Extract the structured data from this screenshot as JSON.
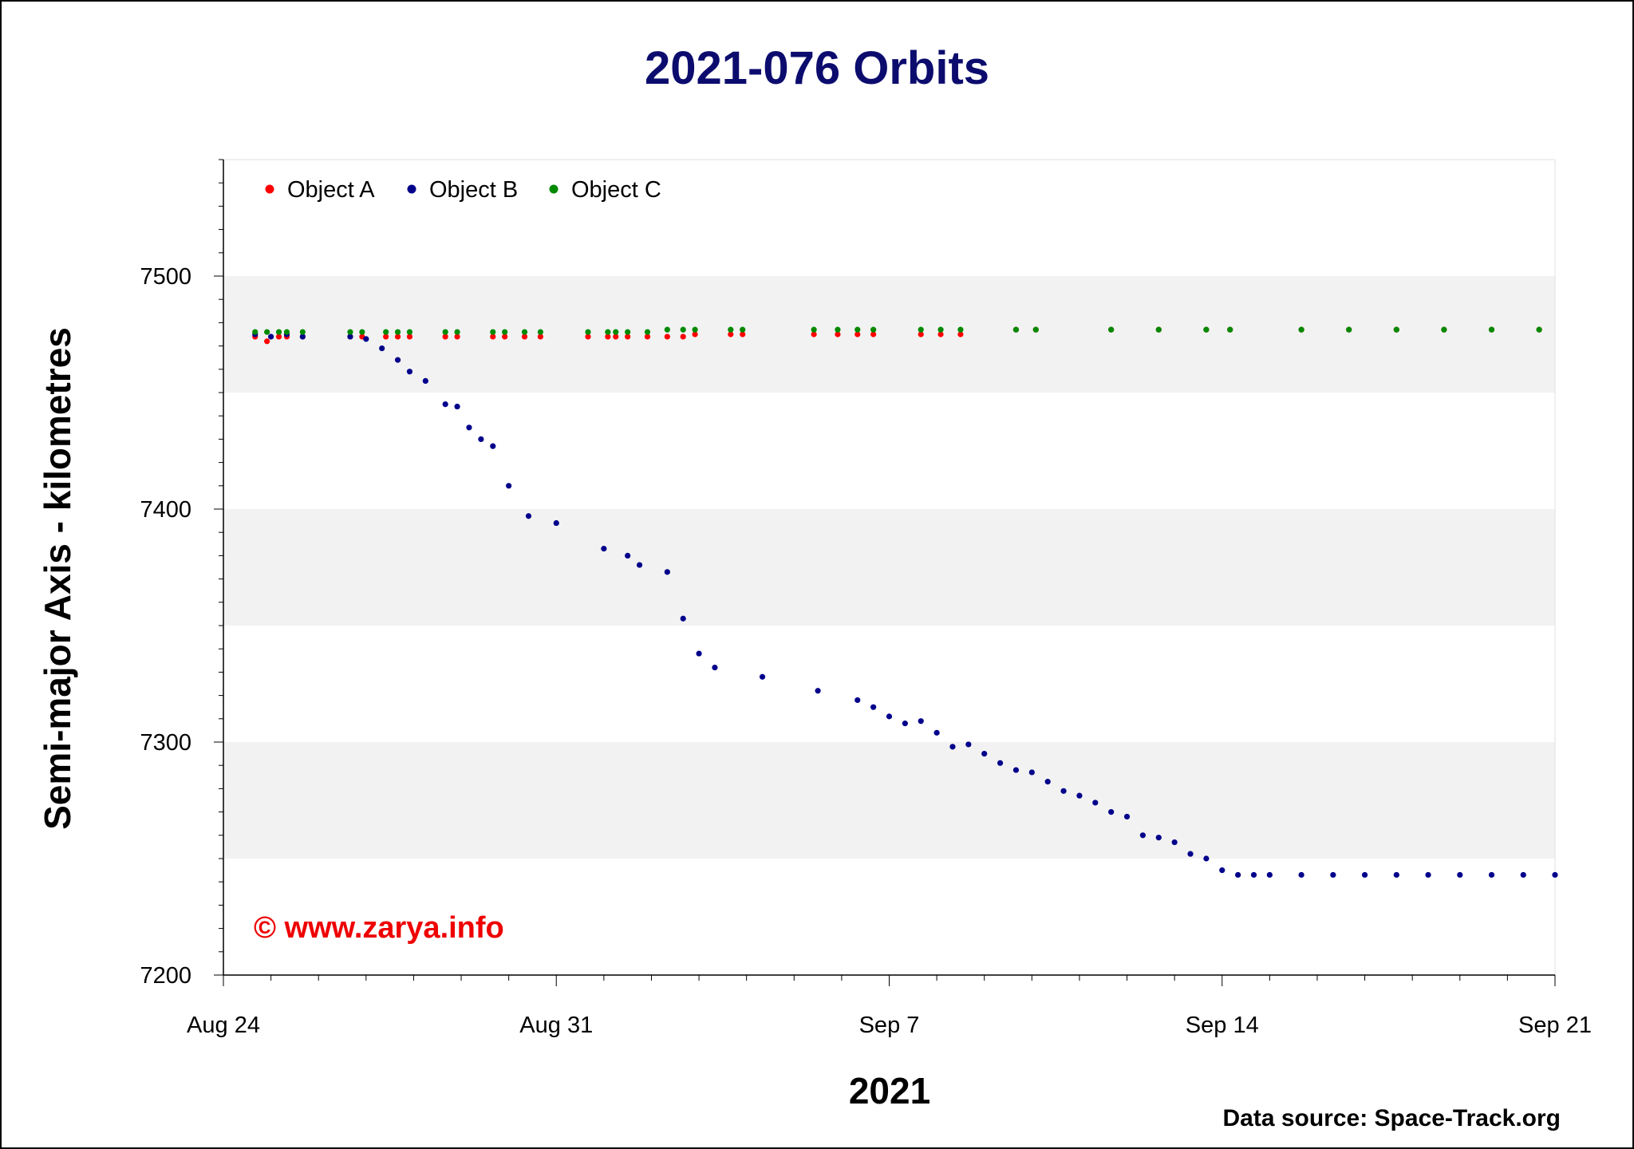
{
  "chart_data": {
    "type": "scatter",
    "title": "2021-076 Orbits",
    "xlabel": "2021",
    "ylabel": "Semi-major Axis - kilometres",
    "watermark": "© www.zarya.info",
    "source": "Data source: Space-Track.org",
    "x_domain": [
      "2021-08-24",
      "2021-09-21"
    ],
    "ylim": [
      7200,
      7550
    ],
    "x_ticks": [
      {
        "label": "Aug 24",
        "date": "2021-08-24"
      },
      {
        "label": "Aug 31",
        "date": "2021-08-31"
      },
      {
        "label": "Sep 7",
        "date": "2021-09-07"
      },
      {
        "label": "Sep 14",
        "date": "2021-09-14"
      },
      {
        "label": "Sep 21",
        "date": "2021-09-21"
      }
    ],
    "y_ticks": [
      7200,
      7300,
      7400,
      7500
    ],
    "grid": "alternating horizontal bands",
    "legend_position": "top-left",
    "series": [
      {
        "name": "Object A",
        "color": "#ff0000",
        "x": [
          "2021-08-24 16:00",
          "2021-08-24 22:00",
          "2021-08-25 04:00",
          "2021-08-25 08:00",
          "2021-08-25 16:00",
          "2021-08-26 16:00",
          "2021-08-26 22:00",
          "2021-08-27 10:00",
          "2021-08-27 16:00",
          "2021-08-27 22:00",
          "2021-08-28 16:00",
          "2021-08-28 22:00",
          "2021-08-29 16:00",
          "2021-08-29 22:00",
          "2021-08-30 08:00",
          "2021-08-30 16:00",
          "2021-08-31 16:00",
          "2021-09-01 02:00",
          "2021-09-01 06:00",
          "2021-09-01 12:00",
          "2021-09-01 22:00",
          "2021-09-02 08:00",
          "2021-09-02 16:00",
          "2021-09-02 22:00",
          "2021-09-03 16:00",
          "2021-09-03 22:00",
          "2021-09-05 10:00",
          "2021-09-05 22:00",
          "2021-09-06 08:00",
          "2021-09-06 16:00",
          "2021-09-07 16:00",
          "2021-09-08 02:00",
          "2021-09-08 12:00",
          "2021-09-09 16:00",
          "2021-09-10 02:00",
          "2021-09-11 16:00",
          "2021-09-12 16:00",
          "2021-09-13 16:00",
          "2021-09-14 04:00",
          "2021-09-15 16:00",
          "2021-09-16 16:00",
          "2021-09-17 16:00",
          "2021-09-18 16:00",
          "2021-09-19 16:00",
          "2021-09-20 16:00"
        ],
        "y": [
          7474,
          7472,
          7474,
          7474,
          7474,
          7474,
          7474,
          7474,
          7474,
          7474,
          7474,
          7474,
          7474,
          7474,
          7474,
          7474,
          7474,
          7474,
          7474,
          7474,
          7474,
          7474,
          7474,
          7475,
          7475,
          7475,
          7475,
          7475,
          7475,
          7475,
          7475,
          7475,
          7475,
          7477,
          7477,
          7477,
          7477,
          7477,
          7477,
          7477,
          7477,
          7477,
          7477,
          7477,
          7477
        ]
      },
      {
        "name": "Object B",
        "color": "#00008b",
        "x": [
          "2021-08-24 16:00",
          "2021-08-25 00:00",
          "2021-08-25 08:00",
          "2021-08-25 16:00",
          "2021-08-26 16:00",
          "2021-08-27 00:00",
          "2021-08-27 08:00",
          "2021-08-27 16:00",
          "2021-08-27 22:00",
          "2021-08-28 06:00",
          "2021-08-28 16:00",
          "2021-08-28 22:00",
          "2021-08-29 04:00",
          "2021-08-29 10:00",
          "2021-08-29 16:00",
          "2021-08-30 00:00",
          "2021-08-30 10:00",
          "2021-08-31 00:00",
          "2021-09-01 00:00",
          "2021-09-01 12:00",
          "2021-09-01 18:00",
          "2021-09-02 08:00",
          "2021-09-02 16:00",
          "2021-09-03 00:00",
          "2021-09-03 08:00",
          "2021-09-04 08:00",
          "2021-09-05 12:00",
          "2021-09-06 08:00",
          "2021-09-06 16:00",
          "2021-09-07 00:00",
          "2021-09-07 08:00",
          "2021-09-07 16:00",
          "2021-09-08 00:00",
          "2021-09-08 08:00",
          "2021-09-08 16:00",
          "2021-09-09 00:00",
          "2021-09-09 08:00",
          "2021-09-09 16:00",
          "2021-09-10 00:00",
          "2021-09-10 08:00",
          "2021-09-10 16:00",
          "2021-09-11 00:00",
          "2021-09-11 08:00",
          "2021-09-11 16:00",
          "2021-09-12 00:00",
          "2021-09-12 08:00",
          "2021-09-12 16:00",
          "2021-09-13 00:00",
          "2021-09-13 08:00",
          "2021-09-13 16:00",
          "2021-09-14 00:00",
          "2021-09-14 08:00",
          "2021-09-14 16:00",
          "2021-09-15 00:00",
          "2021-09-15 16:00",
          "2021-09-16 08:00",
          "2021-09-17 00:00",
          "2021-09-17 16:00",
          "2021-09-18 08:00",
          "2021-09-19 00:00",
          "2021-09-19 16:00",
          "2021-09-20 08:00",
          "2021-09-21 00:00"
        ],
        "y": [
          7475,
          7474,
          7475,
          7474,
          7474,
          7473,
          7469,
          7464,
          7459,
          7455,
          7445,
          7444,
          7435,
          7430,
          7427,
          7410,
          7397,
          7394,
          7383,
          7380,
          7376,
          7373,
          7353,
          7338,
          7332,
          7328,
          7322,
          7318,
          7315,
          7311,
          7308,
          7309,
          7304,
          7298,
          7299,
          7295,
          7291,
          7288,
          7287,
          7283,
          7279,
          7277,
          7274,
          7270,
          7268,
          7260,
          7259,
          7257,
          7252,
          7250,
          7245,
          7243,
          7243,
          7243,
          7243,
          7243,
          7243,
          7243,
          7243,
          7243,
          7243,
          7243,
          7243
        ]
      },
      {
        "name": "Object C",
        "color": "#008a00",
        "x": [
          "2021-08-24 16:00",
          "2021-08-24 22:00",
          "2021-08-25 04:00",
          "2021-08-25 08:00",
          "2021-08-25 16:00",
          "2021-08-26 16:00",
          "2021-08-26 22:00",
          "2021-08-27 10:00",
          "2021-08-27 16:00",
          "2021-08-27 22:00",
          "2021-08-28 16:00",
          "2021-08-28 22:00",
          "2021-08-29 16:00",
          "2021-08-29 22:00",
          "2021-08-30 08:00",
          "2021-08-30 16:00",
          "2021-08-31 16:00",
          "2021-09-01 02:00",
          "2021-09-01 06:00",
          "2021-09-01 12:00",
          "2021-09-01 22:00",
          "2021-09-02 08:00",
          "2021-09-02 16:00",
          "2021-09-02 22:00",
          "2021-09-03 16:00",
          "2021-09-03 22:00",
          "2021-09-05 10:00",
          "2021-09-05 22:00",
          "2021-09-06 08:00",
          "2021-09-06 16:00",
          "2021-09-07 16:00",
          "2021-09-08 02:00",
          "2021-09-08 12:00",
          "2021-09-09 16:00",
          "2021-09-10 02:00",
          "2021-09-11 16:00",
          "2021-09-12 16:00",
          "2021-09-13 16:00",
          "2021-09-14 04:00",
          "2021-09-15 16:00",
          "2021-09-16 16:00",
          "2021-09-17 16:00",
          "2021-09-18 16:00",
          "2021-09-19 16:00",
          "2021-09-20 16:00"
        ],
        "y": [
          7476,
          7476,
          7476,
          7476,
          7476,
          7476,
          7476,
          7476,
          7476,
          7476,
          7476,
          7476,
          7476,
          7476,
          7476,
          7476,
          7476,
          7476,
          7476,
          7476,
          7476,
          7477,
          7477,
          7477,
          7477,
          7477,
          7477,
          7477,
          7477,
          7477,
          7477,
          7477,
          7477,
          7477,
          7477,
          7477,
          7477,
          7477,
          7477,
          7477,
          7477,
          7477,
          7477,
          7477,
          7477
        ]
      }
    ]
  }
}
